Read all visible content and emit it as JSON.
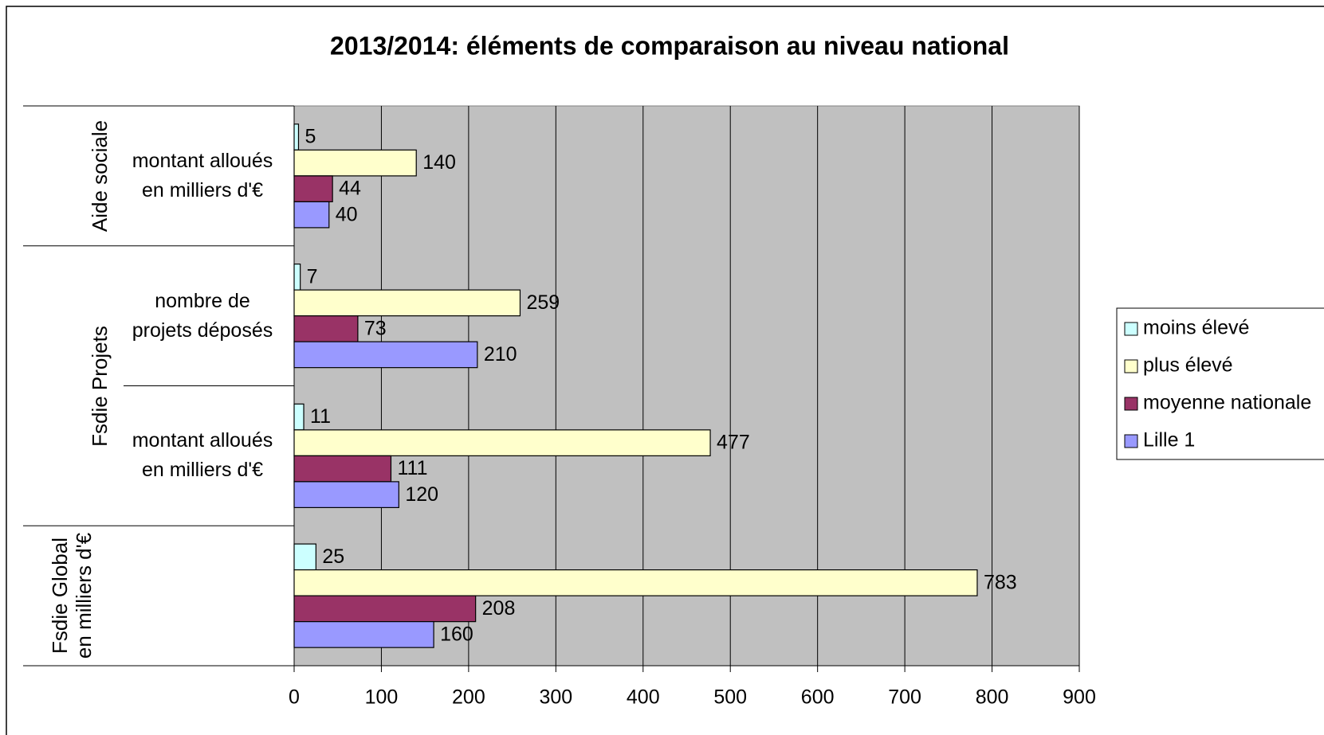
{
  "chart_data": {
    "type": "bar",
    "orientation": "horizontal",
    "title": "2013/2014: éléments de comparaison au niveau national",
    "groups": [
      {
        "name": "Aide sociale",
        "categories": [
          "montant alloués en milliers d'€"
        ]
      },
      {
        "name": "Fsdie Projets",
        "categories": [
          "nombre de projets déposés",
          "montant alloués en milliers d'€"
        ]
      },
      {
        "name": "Fsdie Global en milliers d'€",
        "categories": [
          null
        ]
      }
    ],
    "series": [
      {
        "name": "moins élevé",
        "color": "#ccffff",
        "values": [
          5,
          7,
          11,
          25
        ]
      },
      {
        "name": "plus élevé",
        "color": "#ffffcc",
        "values": [
          140,
          259,
          477,
          783
        ]
      },
      {
        "name": "moyenne nationale",
        "color": "#993366",
        "values": [
          44,
          73,
          111,
          208
        ]
      },
      {
        "name": "Lille 1",
        "color": "#9999ff",
        "values": [
          40,
          210,
          120,
          160
        ]
      }
    ],
    "xlim": [
      0,
      900
    ],
    "xticks": [
      0,
      100,
      200,
      300,
      400,
      500,
      600,
      700,
      800,
      900
    ],
    "grid": true,
    "legend": "right"
  }
}
